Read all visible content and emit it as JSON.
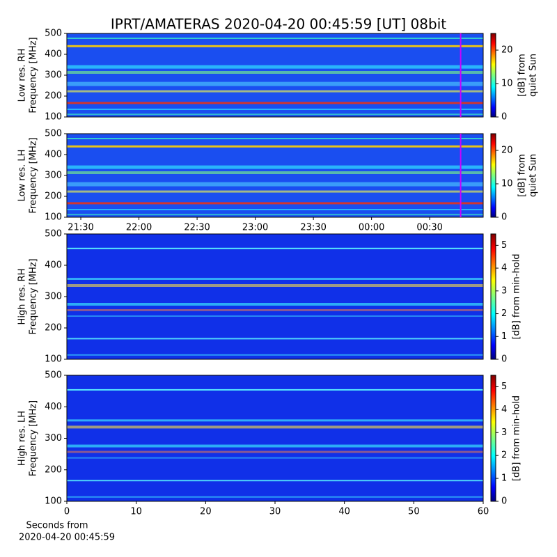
{
  "title": "IPRT/AMATERAS 2020-04-20 00:45:59 [UT]   08bit",
  "chart_data": [
    {
      "type": "heatmap",
      "ylabel": [
        "Low res. RH",
        "Frequency [MHz]"
      ],
      "ylim": [
        100,
        500
      ],
      "yticks": [
        100,
        200,
        300,
        400,
        500
      ],
      "xlim": [
        21.38,
        24.96
      ],
      "marker_x": 24.766,
      "marker_color": "#cc00ff",
      "colormap": "jet",
      "colorbar": {
        "label": [
          "[dB] from",
          "quiet Sun"
        ],
        "lim": [
          0,
          25
        ],
        "ticks": [
          0,
          10,
          20
        ]
      }
    },
    {
      "type": "heatmap",
      "ylabel": [
        "Low res. LH",
        "Frequency [MHz]"
      ],
      "ylim": [
        100,
        500
      ],
      "yticks": [
        100,
        200,
        300,
        400,
        500
      ],
      "xlim": [
        21.38,
        24.96
      ],
      "marker_x": 24.766,
      "marker_color": "#cc00ff",
      "colormap": "jet",
      "xticks": [
        {
          "value": 21.5,
          "label": "21:30"
        },
        {
          "value": 22,
          "label": "22:00"
        },
        {
          "value": 22.5,
          "label": "22:30"
        },
        {
          "value": 23,
          "label": "23:00"
        },
        {
          "value": 23.5,
          "label": "23:30"
        },
        {
          "value": 24,
          "label": "00:00"
        },
        {
          "value": 24.5,
          "label": "00:30"
        }
      ],
      "colorbar": {
        "label": [
          "[dB] from",
          "quiet Sun"
        ],
        "lim": [
          0,
          25
        ],
        "ticks": [
          0,
          10,
          20
        ]
      }
    },
    {
      "type": "heatmap",
      "ylabel": [
        "High res. RH",
        "Frequency [MHz]"
      ],
      "ylim": [
        100,
        500
      ],
      "yticks": [
        100,
        200,
        300,
        400,
        500
      ],
      "xlim": [
        0,
        60
      ],
      "colormap": "jet",
      "colorbar": {
        "label": [
          "[dB] from min-hold"
        ],
        "lim": [
          0,
          5.5
        ],
        "ticks": [
          0,
          1,
          2,
          3,
          4,
          5
        ]
      }
    },
    {
      "type": "heatmap",
      "ylabel": [
        "High res. LH",
        "Frequency [MHz]"
      ],
      "ylim": [
        100,
        500
      ],
      "yticks": [
        100,
        200,
        300,
        400,
        500
      ],
      "xlim": [
        0,
        60
      ],
      "xticks": [
        0,
        10,
        20,
        30,
        40,
        50,
        60
      ],
      "xlabel": [
        "Seconds from",
        "2020-04-20 00:45:59"
      ],
      "colormap": "jet",
      "colorbar": {
        "label": [
          "[dB] from min-hold"
        ],
        "lim": [
          0,
          5.5
        ],
        "ticks": [
          0,
          1,
          2,
          3,
          4,
          5
        ]
      }
    }
  ]
}
